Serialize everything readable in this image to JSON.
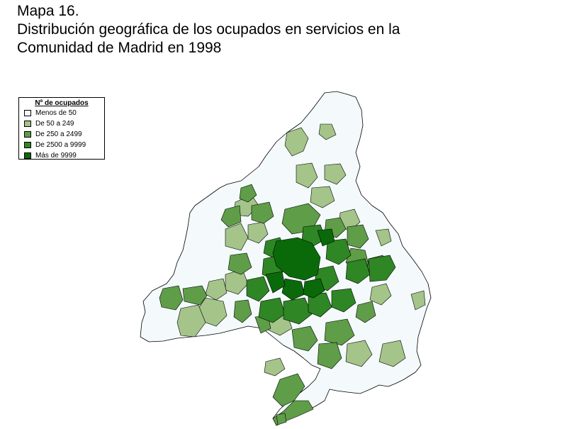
{
  "header": {
    "line1": "Mapa 16.",
    "line2": "Distribución geográfica de los ocupados en servicios en la",
    "line3": "Comunidad de Madrid en 1998"
  },
  "legend": {
    "title": "Nº de ocupados",
    "items": [
      {
        "label": "Menos de 50",
        "color": "#f4fafb"
      },
      {
        "label": "De 50 a 249",
        "color": "#a4c489"
      },
      {
        "label": "De 250 a 2499",
        "color": "#5f9d48"
      },
      {
        "label": "De 2500 a 9999",
        "color": "#2f8624"
      },
      {
        "label": "Más de 9999",
        "color": "#0a6a0a"
      }
    ]
  },
  "map": {
    "region": "Comunidad de Madrid",
    "outline_color": "#000000"
  }
}
